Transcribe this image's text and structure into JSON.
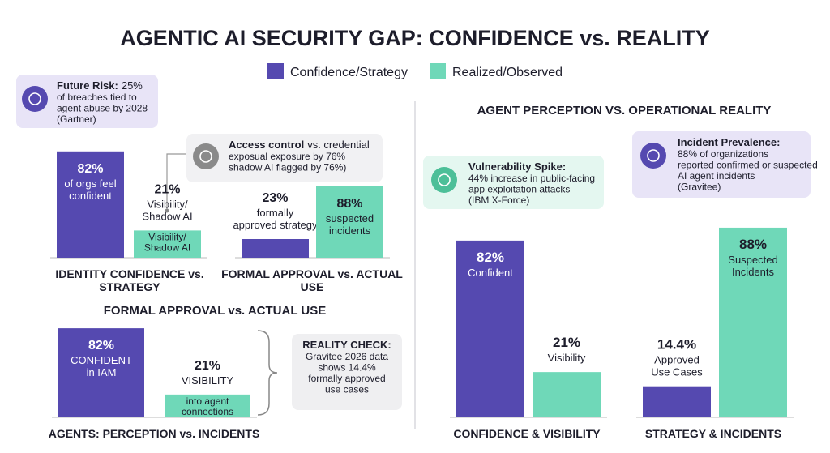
{
  "title": "AGENTIC AI SECURITY GAP: CONFIDENCE vs. REALITY",
  "legend": [
    {
      "label": "Confidence/Strategy",
      "color": "#5549b0"
    },
    {
      "label": "Realized/Observed",
      "color": "#6fd8b8"
    }
  ],
  "headings": [
    "FORMAL APPROVAL vs. ACTUAL USE",
    "AGENT PERCEPTION VS. OPERATIONAL REALITY"
  ],
  "callouts": [
    {
      "bold": "Future Risk:",
      "rest": "25%",
      "lines": [
        "of breaches tied to",
        "agent abuse by 2028",
        "(Gartner)"
      ]
    },
    {
      "bold": "Access control",
      "rest": "vs. credential",
      "lines": [
        "exposual exposure by 76%",
        "shadow AI flagged by 76%)"
      ]
    },
    {
      "bold": "REALITY CHECK:",
      "lines": [
        "Gravitee 2026 data",
        "shows 14.4%",
        "formally approved",
        "use cases"
      ]
    },
    {
      "bold": "Vulnerability Spike:",
      "lines": [
        "44% increase in public-facing",
        "app exploitation attacks",
        "(IBM X-Force)"
      ]
    },
    {
      "bold": "Incident Prevalence:",
      "lines": [
        "88% of organizations",
        "reported confirmed or suspected",
        "AI agent incidents",
        "(Gravitee)"
      ]
    }
  ],
  "charts": [
    {
      "caption": [
        "IDENTITY CONFIDENCE vs.",
        "STRATEGY"
      ],
      "bars": [
        {
          "value": 82,
          "label": "82%",
          "lines": [
            "of orgs feel",
            "confident"
          ],
          "color": "#5549b0",
          "placement": "inside"
        },
        {
          "value": 21,
          "label": "21%",
          "lines": [
            "Visibility/",
            "Shadow AI"
          ],
          "inner": [
            "Visibility/",
            "Shadow AI"
          ],
          "color": "#6fd8b8",
          "placement": "above"
        }
      ]
    },
    {
      "caption": [
        "FORMAL APPROVAL vs. ACTUAL",
        "USE"
      ],
      "bars": [
        {
          "value": 23,
          "label": "23%",
          "lines": [
            "formally",
            "approved strategy"
          ],
          "color": "#5549b0",
          "placement": "above"
        },
        {
          "value": 88,
          "label": "88%",
          "lines": [
            "suspected",
            "incidents"
          ],
          "color": "#6fd8b8",
          "placement": "inside"
        }
      ]
    },
    {
      "caption": [
        "AGENTS: PERCEPTION vs. INCIDENTS"
      ],
      "bars": [
        {
          "value": 82,
          "label": "82%",
          "lines": [
            "CONFIDENT",
            "in IAM"
          ],
          "color": "#5549b0",
          "placement": "inside"
        },
        {
          "value": 21,
          "label": "21%",
          "lines": [
            "VISIBILITY"
          ],
          "inner": [
            "into agent",
            "connections"
          ],
          "color": "#6fd8b8",
          "placement": "above"
        }
      ]
    },
    {
      "caption": [
        "CONFIDENCE & VISIBILITY"
      ],
      "bars": [
        {
          "value": 82,
          "label": "82%",
          "lines": [
            "Confident"
          ],
          "color": "#5549b0",
          "placement": "inside"
        },
        {
          "value": 21,
          "label": "21%",
          "lines": [
            "Visibility"
          ],
          "color": "#6fd8b8",
          "placement": "above"
        }
      ]
    },
    {
      "caption": [
        "STRATEGY & INCIDENTS"
      ],
      "bars": [
        {
          "value": 14.4,
          "label": "14.4%",
          "lines": [
            "Approved",
            "Use Cases"
          ],
          "color": "#5549b0",
          "placement": "above"
        },
        {
          "value": 88,
          "label": "88%",
          "lines": [
            "Suspected",
            "Incidents"
          ],
          "color": "#6fd8b8",
          "placement": "inside"
        }
      ]
    }
  ]
}
